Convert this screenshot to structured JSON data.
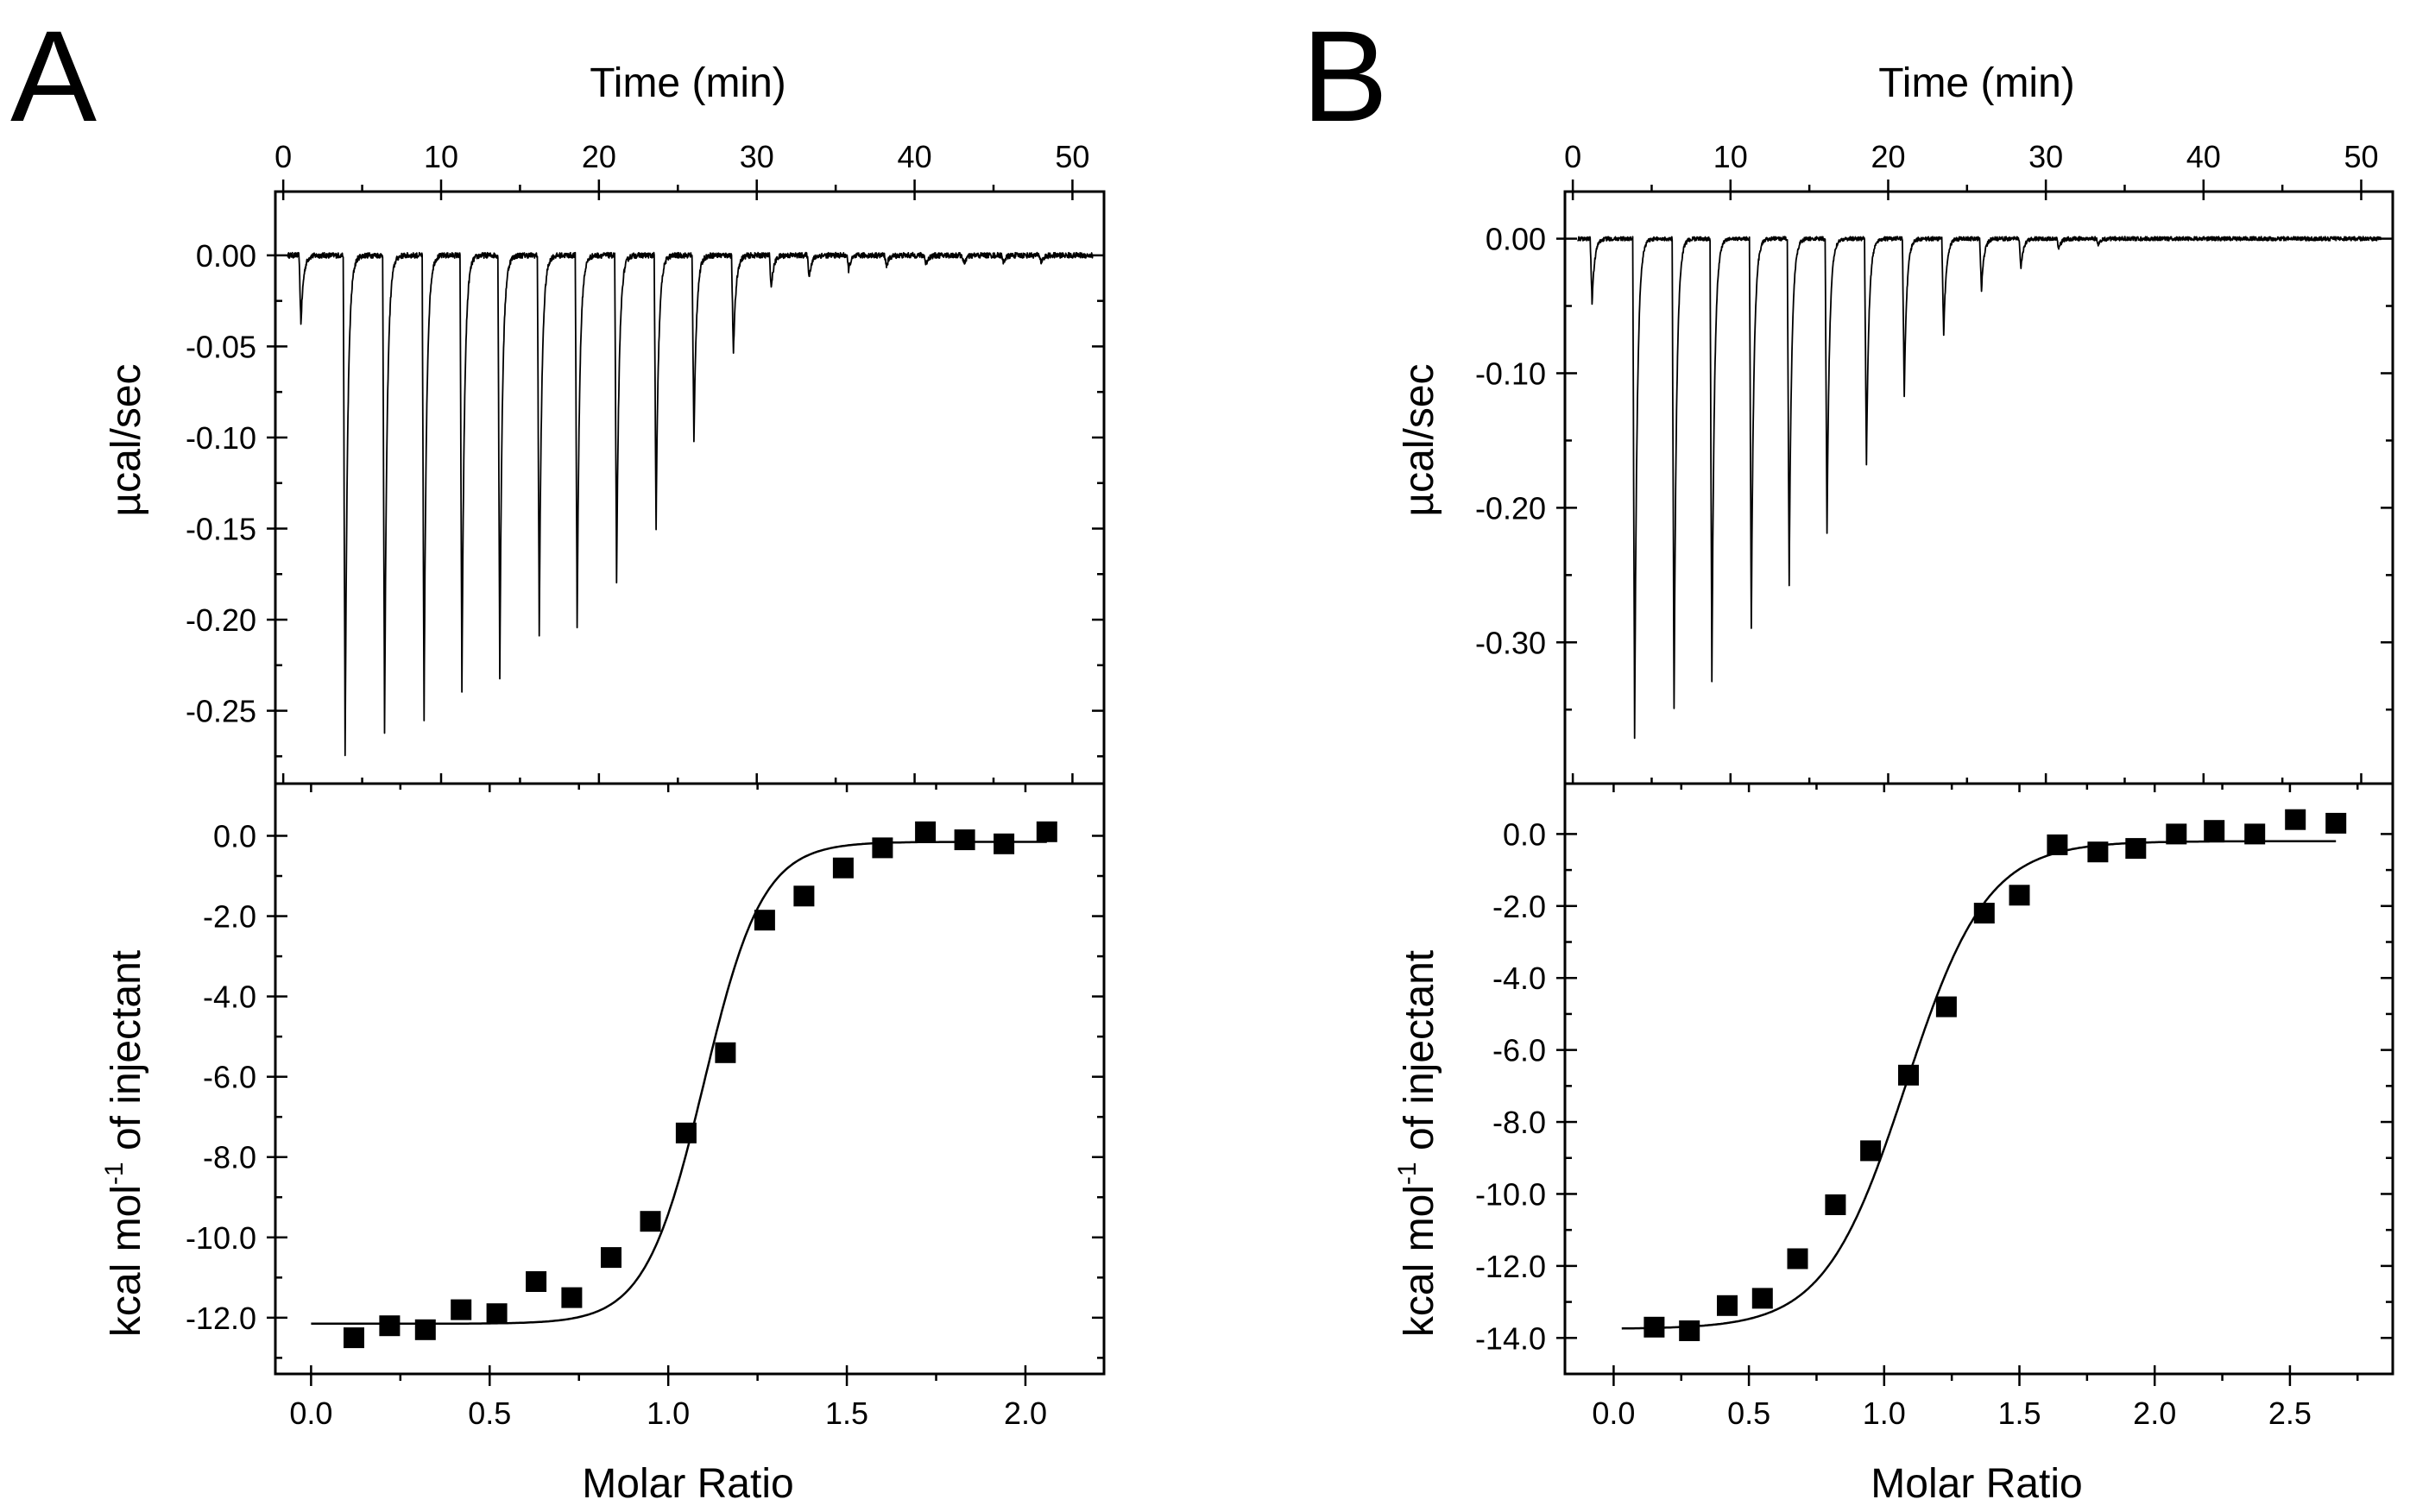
{
  "chart_data": [
    {
      "type": "line",
      "panel_label": "A",
      "top": {
        "xlabel": "Time (min)",
        "ylabel": "µcal/sec",
        "xlim": [
          -0.5,
          52
        ],
        "ylim": [
          -0.29,
          0.035
        ],
        "xticks": [
          0,
          10,
          20,
          30,
          40,
          50
        ],
        "yticks": [
          0.0,
          -0.05,
          -0.1,
          -0.15,
          -0.2,
          -0.25
        ],
        "ytick_labels": [
          "0.00",
          "-0.05",
          "-0.10",
          "-0.15",
          "-0.20",
          "-0.25"
        ],
        "trace": {
          "baseline": 0,
          "injection_times": [
            1.0,
            3.8,
            6.3,
            8.8,
            11.2,
            13.6,
            16.1,
            18.5,
            21.0,
            23.5,
            25.9,
            28.4,
            30.8,
            33.2,
            35.7,
            38.1,
            40.6,
            43.0,
            45.5,
            47.9
          ],
          "peak_minima": [
            -0.038,
            -0.275,
            -0.262,
            -0.255,
            -0.241,
            -0.232,
            -0.208,
            -0.204,
            -0.181,
            -0.15,
            -0.103,
            -0.055,
            -0.018,
            -0.012,
            -0.008,
            -0.006,
            -0.005,
            -0.005,
            -0.004,
            -0.004
          ]
        }
      },
      "bottom": {
        "xlabel": "Molar Ratio",
        "ylabel": "kcal mol⁻¹ of injectant",
        "ylabel_parts": [
          "kcal mol",
          "-1",
          " of injectant"
        ],
        "xlim": [
          -0.1,
          2.22
        ],
        "ylim": [
          -13.4,
          1.3
        ],
        "xticks": [
          0.0,
          0.5,
          1.0,
          1.5,
          2.0
        ],
        "xtick_labels": [
          "0.0",
          "0.5",
          "1.0",
          "1.5",
          "2.0"
        ],
        "yticks": [
          0,
          -2,
          -4,
          -6,
          -8,
          -10,
          -12
        ],
        "ytick_labels": [
          "0.0",
          "-2.0",
          "-4.0",
          "-6.0",
          "-8.0",
          "-10.0",
          "-12.0"
        ],
        "points": {
          "x": [
            0.12,
            0.22,
            0.32,
            0.42,
            0.52,
            0.63,
            0.73,
            0.84,
            0.95,
            1.05,
            1.16,
            1.27,
            1.38,
            1.49,
            1.6,
            1.72,
            1.83,
            1.94,
            2.06
          ],
          "y": [
            -12.5,
            -12.2,
            -12.3,
            -11.8,
            -11.9,
            -11.1,
            -11.5,
            -10.5,
            -9.6,
            -7.4,
            -5.4,
            -2.1,
            -1.5,
            -0.8,
            -0.3,
            0.1,
            -0.1,
            -0.2,
            0.1
          ]
        },
        "fit": {
          "top": -0.15,
          "bottom": -12.15,
          "center": 1.1,
          "width": 0.082
        }
      }
    },
    {
      "type": "line",
      "panel_label": "B",
      "top": {
        "xlabel": "Time (min)",
        "ylabel": "µcal/sec",
        "xlim": [
          -0.5,
          52
        ],
        "ylim": [
          -0.405,
          0.035
        ],
        "xticks": [
          0,
          10,
          20,
          30,
          40,
          50
        ],
        "yticks": [
          0.0,
          -0.1,
          -0.2,
          -0.3
        ],
        "ytick_labels": [
          "0.00",
          "-0.10",
          "-0.20",
          "-0.30"
        ],
        "trace": {
          "baseline": 0,
          "injection_times": [
            1.1,
            3.8,
            6.3,
            8.7,
            11.2,
            13.6,
            16.0,
            18.5,
            20.9,
            23.4,
            25.8,
            28.3,
            30.7,
            33.2
          ],
          "peak_minima": [
            -0.048,
            -0.37,
            -0.35,
            -0.328,
            -0.29,
            -0.258,
            -0.218,
            -0.168,
            -0.116,
            -0.072,
            -0.038,
            -0.022,
            -0.008,
            -0.005
          ]
        }
      },
      "bottom": {
        "xlabel": "Molar Ratio",
        "ylabel": "kcal mol⁻¹ of injectant",
        "ylabel_parts": [
          "kcal mol",
          "-1",
          " of injectant"
        ],
        "xlim": [
          -0.18,
          2.88
        ],
        "ylim": [
          -15.0,
          1.4
        ],
        "xticks": [
          0.0,
          0.5,
          1.0,
          1.5,
          2.0,
          2.5
        ],
        "xtick_labels": [
          "0.0",
          "0.5",
          "1.0",
          "1.5",
          "2.0",
          "2.5"
        ],
        "yticks": [
          0,
          -2,
          -4,
          -6,
          -8,
          -10,
          -12,
          -14
        ],
        "ytick_labels": [
          "0.0",
          "-2.0",
          "-4.0",
          "-6.0",
          "-8.0",
          "-10.0",
          "-12.0",
          "-14.0"
        ],
        "points": {
          "x": [
            0.15,
            0.28,
            0.42,
            0.55,
            0.68,
            0.82,
            0.95,
            1.09,
            1.23,
            1.37,
            1.5,
            1.64,
            1.79,
            1.93,
            2.08,
            2.22,
            2.37,
            2.52,
            2.67
          ],
          "y": [
            -13.7,
            -13.8,
            -13.1,
            -12.9,
            -11.8,
            -10.3,
            -8.8,
            -6.7,
            -4.8,
            -2.2,
            -1.7,
            -0.3,
            -0.5,
            -0.4,
            0.0,
            0.1,
            0.0,
            0.4,
            0.3
          ]
        },
        "fit": {
          "top": -0.2,
          "bottom": -13.75,
          "center": 1.08,
          "width": 0.15
        }
      }
    }
  ]
}
